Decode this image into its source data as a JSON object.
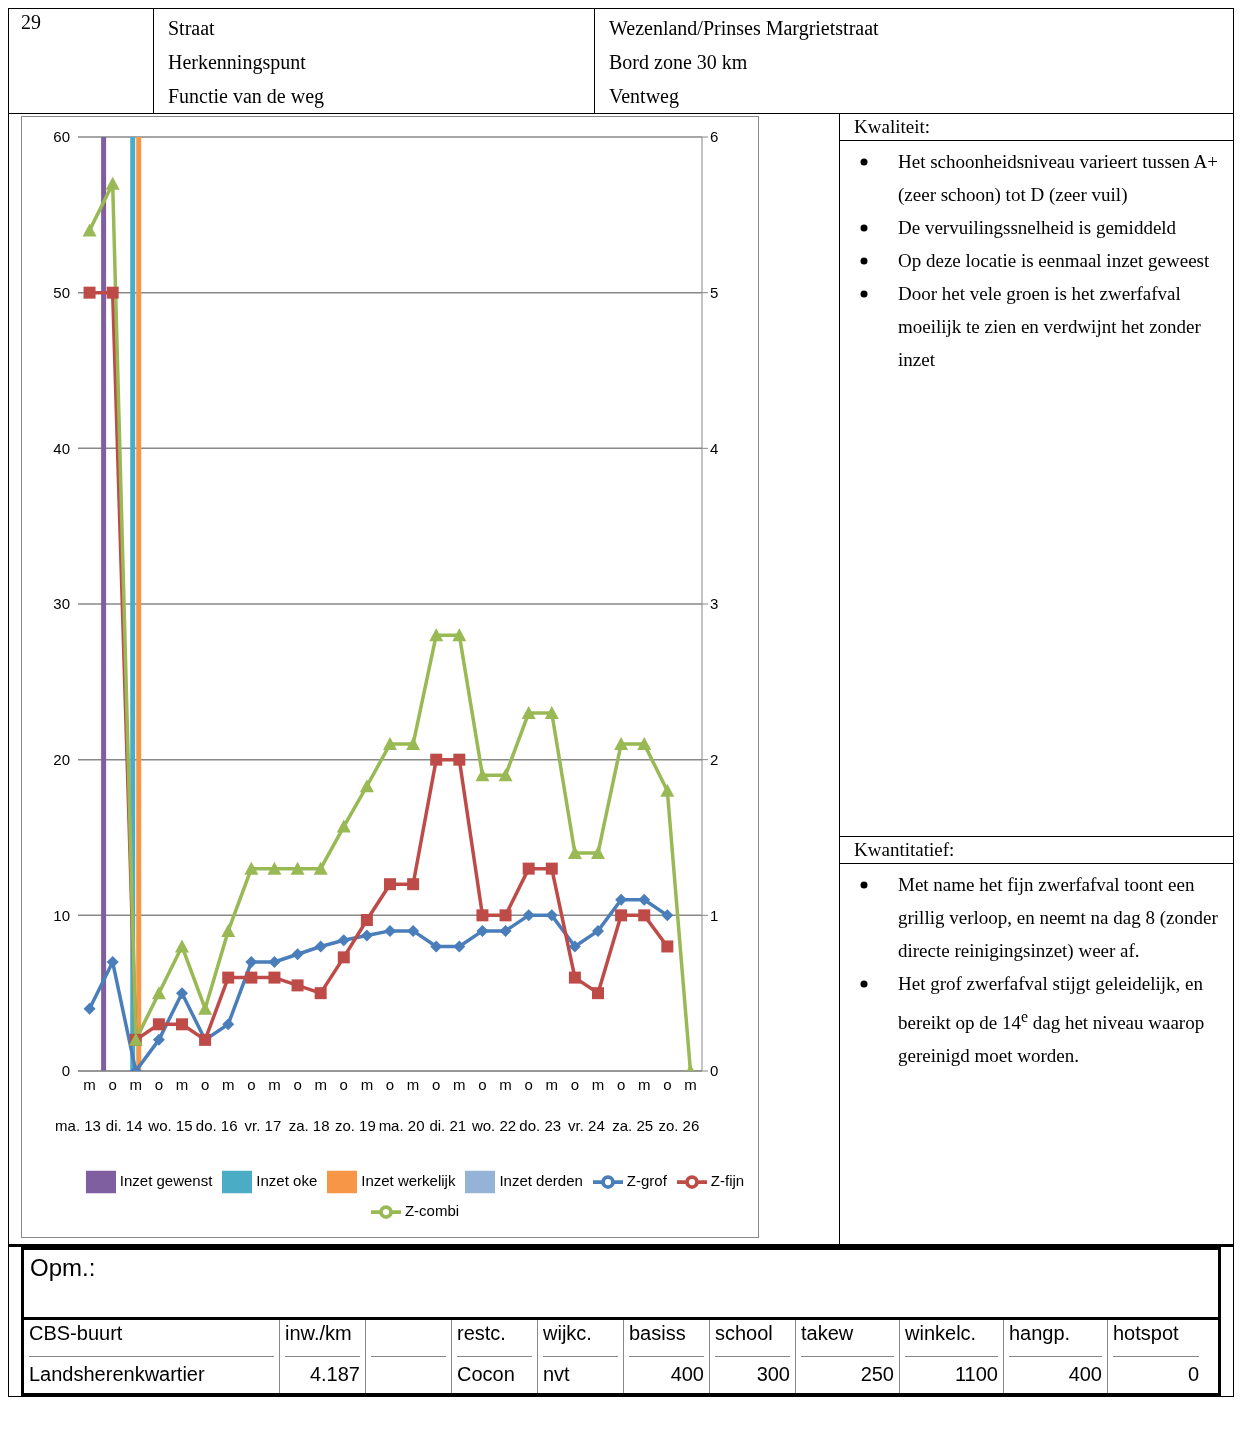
{
  "chart_data": [
    {
      "type": "other",
      "title": "29",
      "categories": [
        "Straat",
        "Herkenningspunt",
        "Functie van de weg"
      ],
      "value_labels": [
        "Wezenland/Prinses Margrietstraat",
        "Bord zone 30 km",
        "Ventweg"
      ]
    },
    {
      "type": "line",
      "categories": [
        "m",
        "o",
        "m",
        "o",
        "m",
        "o",
        "m",
        "o",
        "m",
        "o",
        "m",
        "o",
        "m",
        "o",
        "m",
        "o",
        "m",
        "o",
        "m",
        "o",
        "m",
        "o",
        "m",
        "o",
        "m",
        "o",
        "m"
      ],
      "annotations": [
        "ma. 13",
        "di. 14",
        "wo. 15",
        "do. 16",
        "vr. 17",
        "za. 18",
        "zo. 19",
        "ma. 20",
        "di. 21",
        "wo. 22",
        "do. 23",
        "vr. 24",
        "za. 25",
        "zo. 26"
      ],
      "series": [
        {
          "name": "Inzet gewenst",
          "type": "bar",
          "axis": "y2",
          "color": "#7f5f9f",
          "values": [
            null,
            6,
            null,
            null,
            null,
            null,
            null,
            null,
            null,
            null,
            null,
            null,
            null,
            null,
            null,
            null,
            null,
            null,
            null,
            null,
            null,
            null,
            null,
            null,
            null,
            null,
            null
          ]
        },
        {
          "name": "Inzet oke",
          "type": "bar",
          "axis": "y2",
          "color": "#4bacc6",
          "values": [
            null,
            null,
            6,
            null,
            null,
            null,
            null,
            null,
            null,
            null,
            null,
            null,
            null,
            null,
            null,
            null,
            null,
            null,
            null,
            null,
            null,
            null,
            null,
            null,
            null,
            null,
            null
          ]
        },
        {
          "name": "Inzet werkelijk",
          "type": "bar",
          "axis": "y2",
          "color": "#f79646",
          "values": [
            null,
            null,
            6,
            null,
            null,
            null,
            null,
            null,
            null,
            null,
            null,
            null,
            null,
            null,
            null,
            null,
            null,
            null,
            null,
            null,
            null,
            null,
            null,
            null,
            null,
            null,
            null
          ]
        },
        {
          "name": "Inzet derden",
          "type": "bar",
          "axis": "y2",
          "color": "#95b3d7",
          "values": [
            null,
            null,
            null,
            null,
            null,
            null,
            null,
            null,
            null,
            null,
            null,
            null,
            null,
            null,
            null,
            null,
            null,
            null,
            null,
            null,
            null,
            null,
            null,
            null,
            null,
            null,
            null
          ]
        },
        {
          "name": "Z-grof",
          "marker": "diamond",
          "color": "#4a7ebb",
          "values": [
            4,
            7,
            0,
            2,
            5,
            2,
            3,
            7,
            7,
            7.5,
            8,
            8.4,
            8.7,
            9,
            9,
            8,
            8,
            9,
            9,
            10,
            10,
            8,
            9,
            11,
            11,
            10,
            null
          ]
        },
        {
          "name": "Z-fijn",
          "marker": "square",
          "color": "#be4b48",
          "values": [
            50,
            50,
            2,
            3,
            3,
            2,
            6,
            6,
            6,
            5.5,
            5,
            7.3,
            9.7,
            12,
            12,
            20,
            20,
            10,
            10,
            13,
            13,
            6,
            5,
            10,
            10,
            8,
            null
          ]
        },
        {
          "name": "Z-combi",
          "marker": "triangle",
          "color": "#98b954",
          "values": [
            54,
            57,
            2,
            5,
            8,
            4,
            9,
            13,
            13,
            13,
            13,
            15.7,
            18.3,
            21,
            21,
            28,
            28,
            19,
            19,
            23,
            23,
            14,
            14,
            21,
            21,
            18,
            0
          ]
        }
      ],
      "ylim": [
        0,
        60
      ],
      "yticks": [
        0,
        10,
        20,
        30,
        40,
        50,
        60
      ],
      "y2lim": [
        0,
        6
      ],
      "y2ticks": [
        0,
        1,
        2,
        3,
        4,
        5,
        6
      ],
      "grid": "y",
      "legend": "bottom"
    },
    {
      "type": "other",
      "title": "Kwaliteit:",
      "annotations": [
        "Het schoonheidsniveau varieert tussen A+ (zeer schoon) tot D (zeer vuil)",
        "De vervuilingssnelheid is gemiddeld",
        "Op deze locatie is eenmaal inzet geweest",
        "Door het vele groen is het zwerfafval moeilijk te zien en verdwijnt het zonder inzet"
      ]
    },
    {
      "type": "other",
      "title": "Kwantitatief:",
      "annotations": [
        "Met name het fijn zwerfafval toont een grillig verloop, en neemt na dag 8 (zonder directe reinigingsinzet) weer af.",
        "Het grof zwerfafval stijgt geleidelijk, en bereikt op de 14$^{e}$ dag het niveau waarop gereinigd moet worden."
      ]
    },
    {
      "type": "other",
      "title": "Opm.:",
      "categories": [
        "CBS-buurt",
        "inw./km",
        null,
        "restc.",
        "wijkc.",
        "basiss",
        "school",
        "takew",
        "winkelc.",
        "hangp.",
        "hotspot"
      ],
      "value_labels": [
        "Landsherenkwartier",
        "4.187",
        null,
        "Cocon",
        "nvt",
        "400",
        "300",
        "250",
        "1100",
        "400",
        "0"
      ]
    }
  ]
}
